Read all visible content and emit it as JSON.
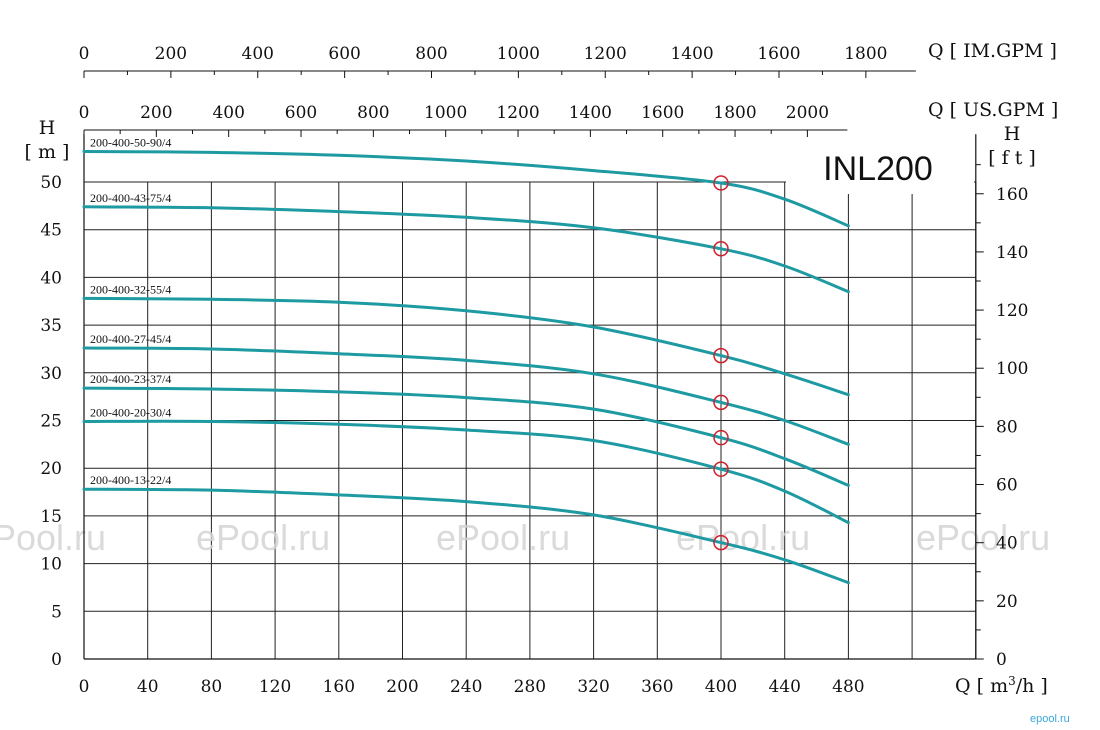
{
  "chart_data": {
    "type": "line",
    "title": "INL200",
    "x": {
      "label": "Q",
      "unit_prefix": "[ m",
      "unit_sup": "3",
      "unit_suffix": "/h ]",
      "ticks": [
        0,
        40,
        80,
        120,
        160,
        200,
        240,
        280,
        320,
        360,
        400,
        440,
        480
      ],
      "range": [
        0,
        560
      ]
    },
    "x_top_im": {
      "label": "Q",
      "unit": "[ IM.GPM ]",
      "ticks": [
        0,
        200,
        400,
        600,
        800,
        1000,
        1200,
        1400,
        1600,
        1800
      ]
    },
    "x_top_us": {
      "label": "Q",
      "unit": "[ US.GPM ]",
      "ticks": [
        0,
        200,
        400,
        600,
        800,
        1000,
        1200,
        1400,
        1600,
        1800,
        2000
      ]
    },
    "y_left": {
      "label": "H",
      "unit": "[ m ]",
      "ticks": [
        0,
        5,
        10,
        15,
        20,
        25,
        30,
        35,
        40,
        45,
        50
      ],
      "range": [
        0,
        55
      ]
    },
    "y_right": {
      "label": "H",
      "unit": "[ f t ]",
      "ticks": [
        0,
        20,
        40,
        60,
        80,
        100,
        120,
        140,
        160
      ]
    },
    "grid": true,
    "colors": {
      "curve": "#1e9aa2",
      "marker": "#d11f2a",
      "grid": "#222222"
    },
    "series": [
      {
        "name": "200-400-50-90/4",
        "x": [
          0,
          80,
          160,
          240,
          320,
          400,
          440,
          480
        ],
        "y": [
          53.2,
          53.1,
          52.8,
          52.2,
          51.2,
          49.9,
          48.2,
          45.4
        ]
      },
      {
        "name": "200-400-43-75/4",
        "x": [
          0,
          80,
          160,
          240,
          320,
          400,
          440,
          480
        ],
        "y": [
          47.4,
          47.3,
          46.9,
          46.3,
          45.2,
          43.0,
          41.2,
          38.5
        ]
      },
      {
        "name": "200-400-32-55/4",
        "x": [
          0,
          80,
          160,
          240,
          320,
          400,
          440,
          480
        ],
        "y": [
          37.8,
          37.7,
          37.4,
          36.5,
          34.8,
          31.8,
          29.9,
          27.7
        ]
      },
      {
        "name": "200-400-27-45/4",
        "x": [
          0,
          80,
          160,
          240,
          320,
          400,
          440,
          480
        ],
        "y": [
          32.6,
          32.5,
          32.0,
          31.3,
          29.9,
          26.9,
          25.0,
          22.5
        ]
      },
      {
        "name": "200-400-23-37/4",
        "x": [
          0,
          80,
          160,
          240,
          320,
          400,
          440,
          480
        ],
        "y": [
          28.4,
          28.3,
          28.0,
          27.4,
          26.2,
          23.2,
          21.0,
          18.2
        ]
      },
      {
        "name": "200-400-20-30/4",
        "x": [
          0,
          80,
          160,
          240,
          320,
          400,
          440,
          480
        ],
        "y": [
          24.9,
          24.9,
          24.6,
          24.0,
          22.9,
          19.9,
          17.6,
          14.3
        ]
      },
      {
        "name": "200-400-13-22/4",
        "x": [
          0,
          80,
          160,
          240,
          320,
          400,
          440,
          480
        ],
        "y": [
          17.8,
          17.7,
          17.2,
          16.5,
          15.1,
          12.2,
          10.4,
          8.0
        ]
      }
    ],
    "markers": [
      {
        "x": 400,
        "y": 49.9
      },
      {
        "x": 400,
        "y": 43.0
      },
      {
        "x": 400,
        "y": 31.8
      },
      {
        "x": 400,
        "y": 26.9
      },
      {
        "x": 400,
        "y": 23.2
      },
      {
        "x": 400,
        "y": 19.9
      },
      {
        "x": 400,
        "y": 12.2
      }
    ]
  },
  "watermark": {
    "text": "ePool.ru",
    "partial_text": "Pool.ru",
    "corner_logo": "epool.ru"
  }
}
